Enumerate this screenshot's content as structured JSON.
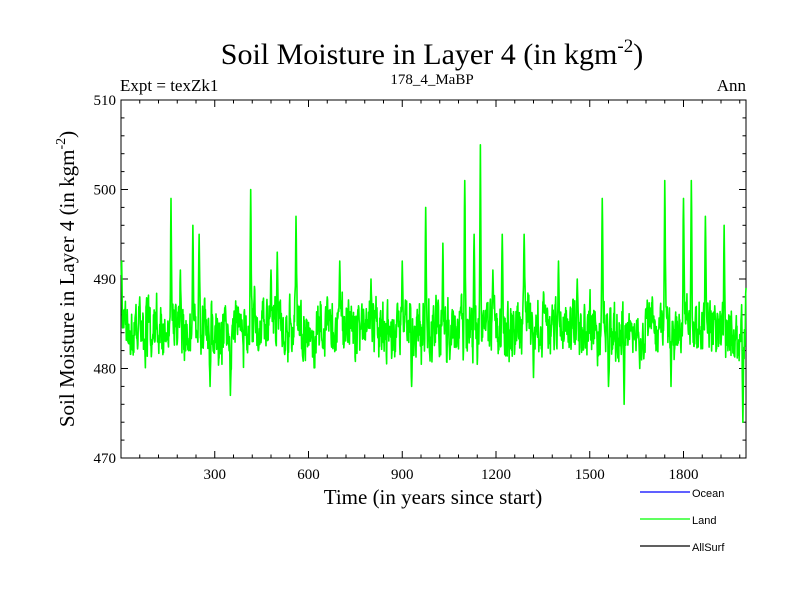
{
  "chart_data": {
    "type": "line",
    "title_main": "Soil Moisture in Layer 4 (in kgm",
    "title_sup": "-2",
    "title_close": ")",
    "header_left": "Expt = texZk1",
    "header_center": "178_4_MaBP",
    "header_right": "Ann",
    "xlabel": "Time (in years since start)",
    "ylabel_main": "Soil Moisture in Layer 4 (in kgm",
    "ylabel_sup": "-2",
    "ylabel_close": ")",
    "xlim": [
      0,
      2000
    ],
    "ylim": [
      470,
      510
    ],
    "xticks": [
      300,
      600,
      900,
      1200,
      1500,
      1800
    ],
    "xtick_labels": [
      "300",
      "600",
      "900",
      "1200",
      "1500",
      "1800"
    ],
    "yticks": [
      470,
      480,
      490,
      500,
      510
    ],
    "ytick_labels": [
      "470",
      "480",
      "490",
      "500",
      "510"
    ],
    "legend": [
      {
        "name": "Ocean",
        "color": "#0000ff"
      },
      {
        "name": "Land",
        "color": "#00ff00"
      },
      {
        "name": "AllSurf",
        "color": "#000000"
      }
    ],
    "series": [
      {
        "name": "Land",
        "color": "#00ff00",
        "baseline": 484.5,
        "x_start": 1,
        "x_end": 2000,
        "points_count": 2000,
        "spikes": [
          {
            "x": 2,
            "y": 492
          },
          {
            "x": 60,
            "y": 488
          },
          {
            "x": 160,
            "y": 499
          },
          {
            "x": 190,
            "y": 491
          },
          {
            "x": 230,
            "y": 496
          },
          {
            "x": 250,
            "y": 495
          },
          {
            "x": 285,
            "y": 478
          },
          {
            "x": 350,
            "y": 477
          },
          {
            "x": 380,
            "y": 486
          },
          {
            "x": 415,
            "y": 500
          },
          {
            "x": 440,
            "y": 482
          },
          {
            "x": 480,
            "y": 491
          },
          {
            "x": 500,
            "y": 493
          },
          {
            "x": 560,
            "y": 497
          },
          {
            "x": 610,
            "y": 484
          },
          {
            "x": 660,
            "y": 488
          },
          {
            "x": 700,
            "y": 492
          },
          {
            "x": 760,
            "y": 487
          },
          {
            "x": 800,
            "y": 490
          },
          {
            "x": 860,
            "y": 484
          },
          {
            "x": 900,
            "y": 492
          },
          {
            "x": 930,
            "y": 478
          },
          {
            "x": 975,
            "y": 498
          },
          {
            "x": 1000,
            "y": 487
          },
          {
            "x": 1030,
            "y": 494
          },
          {
            "x": 1100,
            "y": 501
          },
          {
            "x": 1130,
            "y": 495
          },
          {
            "x": 1150,
            "y": 505
          },
          {
            "x": 1190,
            "y": 491
          },
          {
            "x": 1220,
            "y": 495
          },
          {
            "x": 1290,
            "y": 495
          },
          {
            "x": 1320,
            "y": 479
          },
          {
            "x": 1400,
            "y": 492
          },
          {
            "x": 1460,
            "y": 490
          },
          {
            "x": 1540,
            "y": 499
          },
          {
            "x": 1560,
            "y": 478
          },
          {
            "x": 1610,
            "y": 476
          },
          {
            "x": 1660,
            "y": 480
          },
          {
            "x": 1700,
            "y": 488
          },
          {
            "x": 1740,
            "y": 501
          },
          {
            "x": 1760,
            "y": 478
          },
          {
            "x": 1800,
            "y": 499
          },
          {
            "x": 1825,
            "y": 501
          },
          {
            "x": 1870,
            "y": 497
          },
          {
            "x": 1900,
            "y": 487
          },
          {
            "x": 1930,
            "y": 496
          },
          {
            "x": 1990,
            "y": 474
          },
          {
            "x": 2000,
            "y": 489
          }
        ]
      }
    ]
  }
}
